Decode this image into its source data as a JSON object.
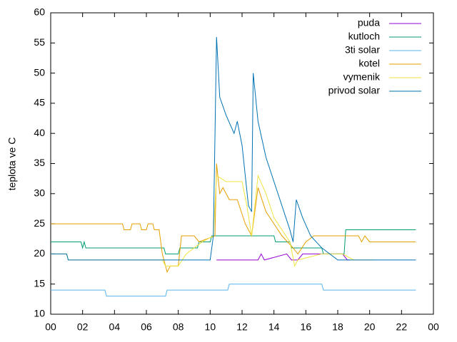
{
  "chart_data": {
    "type": "line",
    "ylabel": "teplota ve C",
    "xlim": [
      0,
      24
    ],
    "ylim": [
      10,
      60
    ],
    "xticks": [
      {
        "value": 0,
        "label": "00"
      },
      {
        "value": 2,
        "label": "02"
      },
      {
        "value": 4,
        "label": "04"
      },
      {
        "value": 6,
        "label": "06"
      },
      {
        "value": 8,
        "label": "08"
      },
      10,
      12,
      14,
      16,
      18,
      20,
      22,
      {
        "value": 24,
        "label": "00"
      }
    ],
    "yticks": [
      10,
      15,
      20,
      25,
      30,
      35,
      40,
      45,
      50,
      55,
      60
    ],
    "legend": "top-right",
    "series": [
      {
        "name": "puda",
        "color": "#9400d3",
        "x": [
          10.4,
          13,
          13.2,
          13.4,
          14.8,
          15.1,
          15.5,
          15.8,
          16,
          18.3,
          18.6,
          18.8
        ],
        "values": [
          19,
          19,
          20,
          19,
          20,
          19,
          19,
          20,
          20,
          20,
          19,
          19
        ]
      },
      {
        "name": "kutloch",
        "color": "#009e73",
        "x": [
          0,
          1.9,
          2,
          2.1,
          2.2,
          7.1,
          7.2,
          8,
          8.1,
          9.2,
          9.3,
          10,
          10.1,
          14,
          14.1,
          15,
          15.1,
          17,
          17.1,
          18.4,
          18.5,
          22.9
        ],
        "values": [
          22,
          22,
          21,
          22,
          21,
          21,
          20,
          20,
          21,
          21,
          22,
          22,
          23,
          23,
          22,
          22,
          21,
          21,
          20,
          20,
          24,
          24
        ]
      },
      {
        "name": "3ti solar",
        "color": "#56b4e9",
        "x": [
          0,
          3.4,
          3.5,
          7.2,
          7.3,
          11.1,
          11.2,
          17,
          17.1,
          22.9
        ],
        "values": [
          14,
          14,
          13,
          13,
          14,
          14,
          15,
          15,
          14,
          14
        ]
      },
      {
        "name": "kotel",
        "color": "#e69f00",
        "x": [
          0,
          4.5,
          4.6,
          5,
          5.1,
          5.6,
          5.7,
          6,
          6.1,
          6.4,
          6.5,
          6.8,
          7,
          7.3,
          7.5,
          8,
          8.2,
          9,
          9.3,
          10.3,
          10.4,
          10.6,
          10.8,
          11.2,
          11.7,
          12.2,
          12.6,
          13,
          13.5,
          14,
          14.5,
          15.2,
          15.5,
          16,
          16.5,
          19.3,
          19.5,
          19.7,
          20,
          22.9
        ],
        "values": [
          25,
          25,
          24,
          24,
          25,
          25,
          24,
          24,
          25,
          25,
          24,
          24,
          20,
          17,
          18,
          18,
          23,
          23,
          22,
          23,
          35,
          30,
          31,
          29,
          29,
          25,
          23,
          31,
          27,
          25,
          23,
          21,
          20,
          22,
          23,
          23,
          22,
          23,
          22,
          22
        ]
      },
      {
        "name": "vymenik",
        "color": "#f0e442",
        "x": [
          0,
          1,
          1.1,
          7,
          7.2,
          8,
          8.5,
          9,
          9.5,
          10.2,
          10.4,
          11,
          12,
          12.3,
          12.6,
          13,
          13.5,
          14,
          15,
          15.3,
          15.5,
          17,
          18.3,
          19,
          20.3
        ],
        "values": [
          20,
          20,
          19,
          19,
          18,
          18,
          20,
          21,
          22,
          23,
          33,
          32,
          32,
          28,
          23,
          33,
          30,
          26,
          22,
          18,
          19,
          20,
          20,
          19,
          19
        ]
      },
      {
        "name": "privod solar",
        "color": "#0072b2",
        "x": [
          0,
          1,
          1.1,
          10,
          10.2,
          10.4,
          10.6,
          11,
          11.5,
          11.7,
          12,
          12.4,
          12.6,
          12.7,
          13,
          13.5,
          14,
          14.5,
          15,
          15.2,
          15.4,
          15.8,
          16.3,
          17,
          17.5,
          18,
          22.9
        ],
        "values": [
          20,
          20,
          19,
          19,
          23,
          56,
          46,
          43,
          40,
          42,
          38,
          28,
          27,
          50,
          42,
          36,
          32,
          28,
          24,
          22,
          29,
          26,
          23,
          21,
          20,
          19,
          19
        ]
      }
    ]
  }
}
